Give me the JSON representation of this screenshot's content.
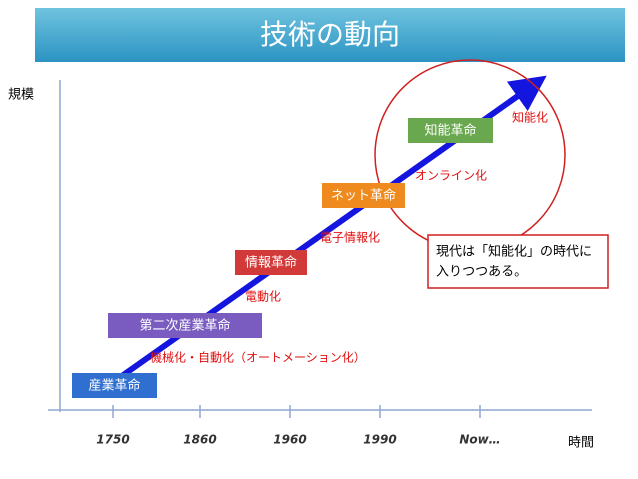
{
  "title": "技術の動向",
  "y_axis_label": "規模",
  "x_axis_label": "時間",
  "x_ticks": [
    "1750",
    "1860",
    "1960",
    "1990",
    "Now…"
  ],
  "stages": [
    "産業革命",
    "第二次産業革命",
    "情報革命",
    "ネット革命",
    "知能革命"
  ],
  "notes": [
    "機械化・自動化（オートメーション化）",
    "電動化",
    "電子情報化",
    "オンライン化",
    "知能化"
  ],
  "callout": [
    "現代は「知能化」の時代に",
    "入りつつある。"
  ]
}
